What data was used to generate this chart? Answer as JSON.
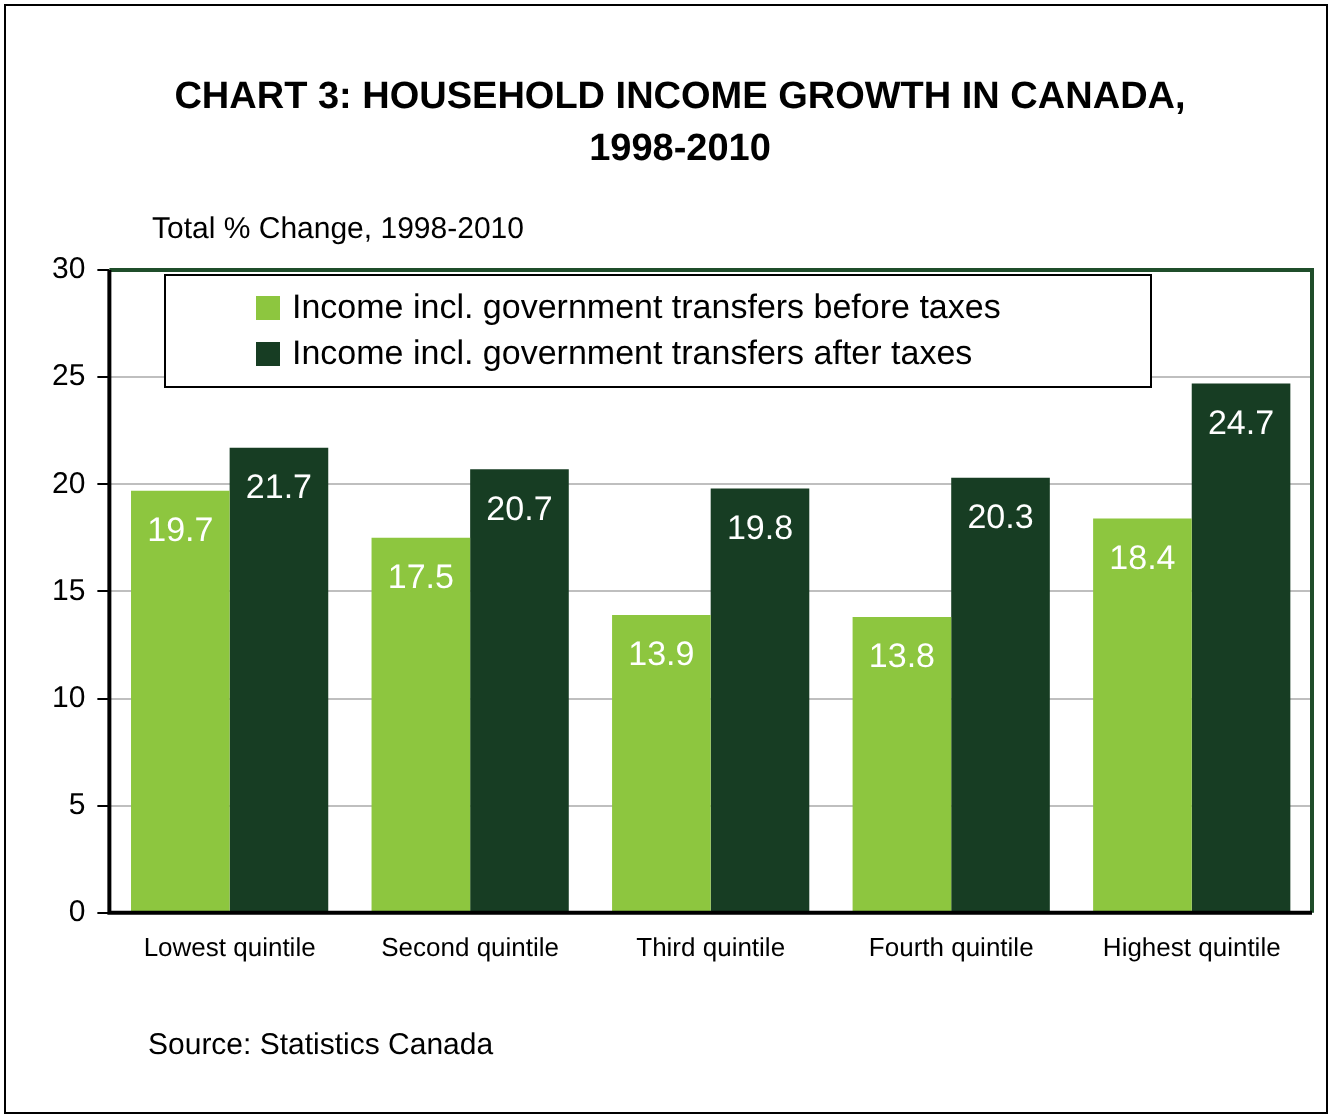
{
  "chart_data": {
    "type": "bar",
    "title": "CHART 3: HOUSEHOLD INCOME GROWTH IN CANADA, 1998-2010",
    "ylabel": "Total % Change, 1998-2010",
    "categories": [
      "Lowest quintile",
      "Second quintile",
      "Third quintile",
      "Fourth quintile",
      "Highest quintile"
    ],
    "series": [
      {
        "name": "Income incl. government transfers before taxes",
        "color": "#8dc63f",
        "values": [
          19.7,
          17.5,
          13.9,
          13.8,
          18.4
        ]
      },
      {
        "name": "Income incl. government transfers after taxes",
        "color": "#173d23",
        "values": [
          21.7,
          20.7,
          19.8,
          20.3,
          24.7
        ]
      }
    ],
    "ylim": [
      0,
      30
    ],
    "yticks": [
      0,
      5,
      10,
      15,
      20,
      25,
      30
    ],
    "grid": "y",
    "legend": "top",
    "data_labels": true,
    "annotations": [
      "Source: Statistics Canada"
    ]
  }
}
